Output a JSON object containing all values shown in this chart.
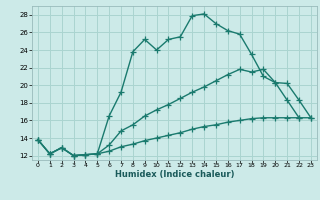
{
  "xlabel": "Humidex (Indice chaleur)",
  "bg_color": "#cceae8",
  "grid_color": "#aad4d0",
  "line_color": "#1a7a6e",
  "xlim": [
    -0.5,
    23.5
  ],
  "ylim": [
    11.5,
    29.0
  ],
  "xticks": [
    0,
    1,
    2,
    3,
    4,
    5,
    6,
    7,
    8,
    9,
    10,
    11,
    12,
    13,
    14,
    15,
    16,
    17,
    18,
    19,
    20,
    21,
    22,
    23
  ],
  "yticks": [
    12,
    14,
    16,
    18,
    20,
    22,
    24,
    26,
    28
  ],
  "line1_x": [
    0,
    1,
    2,
    3,
    4,
    5,
    6,
    7,
    8,
    9,
    10,
    11,
    12,
    13,
    14,
    15,
    16,
    17,
    18,
    19,
    20,
    21,
    22
  ],
  "line1_y": [
    13.8,
    12.2,
    12.9,
    12.0,
    12.1,
    12.2,
    16.5,
    19.2,
    23.8,
    25.2,
    24.0,
    25.2,
    25.5,
    27.9,
    28.1,
    27.0,
    26.2,
    25.8,
    23.5,
    21.0,
    20.3,
    18.3,
    16.3
  ],
  "line2_x": [
    0,
    1,
    2,
    3,
    4,
    5,
    6,
    7,
    8,
    9,
    10,
    11,
    12,
    13,
    14,
    15,
    16,
    17,
    18,
    19,
    20,
    21,
    22,
    23
  ],
  "line2_y": [
    13.8,
    12.2,
    12.9,
    12.0,
    12.1,
    12.2,
    13.2,
    14.8,
    15.5,
    16.5,
    17.2,
    17.8,
    18.5,
    19.2,
    19.8,
    20.5,
    21.2,
    21.8,
    21.5,
    21.8,
    20.3,
    20.2,
    18.3,
    16.3
  ],
  "line3_x": [
    0,
    1,
    2,
    3,
    4,
    5,
    6,
    7,
    8,
    9,
    10,
    11,
    12,
    13,
    14,
    15,
    16,
    17,
    18,
    19,
    20,
    21,
    22,
    23
  ],
  "line3_y": [
    13.8,
    12.2,
    12.9,
    12.0,
    12.1,
    12.2,
    12.5,
    13.0,
    13.3,
    13.7,
    14.0,
    14.3,
    14.6,
    15.0,
    15.3,
    15.5,
    15.8,
    16.0,
    16.2,
    16.3,
    16.3,
    16.3,
    16.3,
    16.3
  ]
}
